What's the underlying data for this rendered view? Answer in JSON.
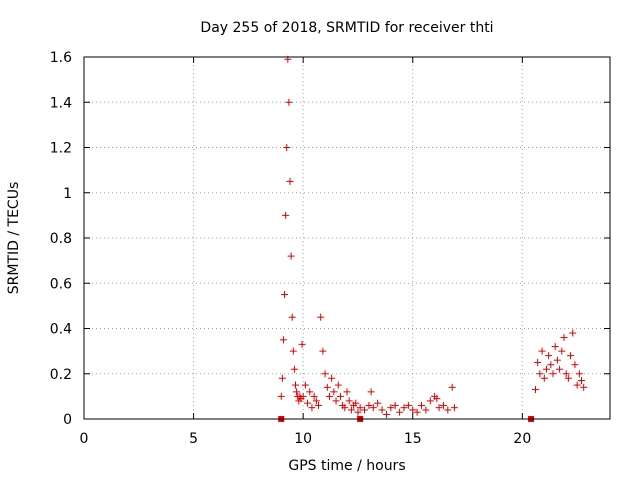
{
  "chart_data": {
    "type": "scatter",
    "title": "Day 255 of 2018, SRMTID for receiver thti",
    "xlabel": "GPS time / hours",
    "ylabel": "SRMTID / TECUs",
    "xlim": [
      0,
      24
    ],
    "ylim": [
      0,
      1.6
    ],
    "xticks": [
      0,
      5,
      10,
      15,
      20
    ],
    "xtick_labels": [
      "0",
      "5",
      "10",
      "15",
      "20"
    ],
    "yticks": [
      0,
      0.2,
      0.4,
      0.6,
      0.8,
      1.0,
      1.2,
      1.4,
      1.6
    ],
    "ytick_labels": [
      "0",
      "0.2",
      "0.4",
      "0.6",
      "0.8",
      "1",
      "1.2",
      "1.4",
      "1.6"
    ],
    "grid": true,
    "legend": "none",
    "marker": "plus",
    "color": "#dd0000",
    "series": [
      {
        "x": [
          9.0,
          9.05,
          9.1,
          9.15,
          9.2,
          9.25,
          9.3,
          9.35,
          9.4,
          9.45,
          9.5,
          9.55,
          9.6,
          9.65,
          9.7,
          9.75,
          9.8,
          9.85,
          9.9,
          9.95,
          10.0,
          10.1,
          10.2,
          10.3,
          10.4,
          10.5,
          10.6,
          10.7,
          10.8,
          10.9,
          11.0,
          11.1,
          11.2,
          11.3,
          11.4,
          11.5,
          11.6,
          11.7,
          11.8,
          11.9,
          12.0,
          12.1,
          12.2,
          12.3,
          12.4,
          12.5,
          12.6,
          12.8,
          13.0,
          13.1,
          13.2,
          13.4,
          13.6,
          13.8,
          14.0,
          14.2,
          14.4,
          14.6,
          14.8,
          15.0,
          15.2,
          15.4,
          15.6,
          15.8,
          16.0,
          16.1,
          16.2,
          16.4,
          16.6,
          16.8,
          16.9,
          20.6,
          20.7,
          20.8,
          20.9,
          21.0,
          21.1,
          21.2,
          21.3,
          21.4,
          21.5,
          21.6,
          21.7,
          21.8,
          21.9,
          22.0,
          22.1,
          22.2,
          22.3,
          22.4,
          22.5,
          22.6,
          22.7,
          22.8
        ],
        "y": [
          0.1,
          0.18,
          0.35,
          0.55,
          0.9,
          1.2,
          1.59,
          1.4,
          1.05,
          0.72,
          0.45,
          0.3,
          0.22,
          0.15,
          0.12,
          0.1,
          0.08,
          0.1,
          0.09,
          0.33,
          0.1,
          0.15,
          0.07,
          0.12,
          0.05,
          0.1,
          0.08,
          0.06,
          0.45,
          0.3,
          0.2,
          0.14,
          0.1,
          0.18,
          0.12,
          0.08,
          0.15,
          0.1,
          0.06,
          0.05,
          0.12,
          0.08,
          0.04,
          0.06,
          0.07,
          0.03,
          0.05,
          0.04,
          0.06,
          0.12,
          0.05,
          0.07,
          0.04,
          0.02,
          0.05,
          0.06,
          0.03,
          0.05,
          0.06,
          0.04,
          0.03,
          0.06,
          0.04,
          0.08,
          0.1,
          0.09,
          0.05,
          0.06,
          0.04,
          0.14,
          0.05,
          0.13,
          0.25,
          0.2,
          0.3,
          0.18,
          0.22,
          0.28,
          0.24,
          0.2,
          0.32,
          0.26,
          0.22,
          0.3,
          0.36,
          0.2,
          0.18,
          0.28,
          0.38,
          0.24,
          0.15,
          0.2,
          0.17,
          0.14
        ]
      },
      {
        "x": [
          9.0,
          12.6,
          20.4
        ],
        "y": [
          0.0,
          0.0,
          0.0
        ],
        "marker": "square"
      }
    ]
  }
}
